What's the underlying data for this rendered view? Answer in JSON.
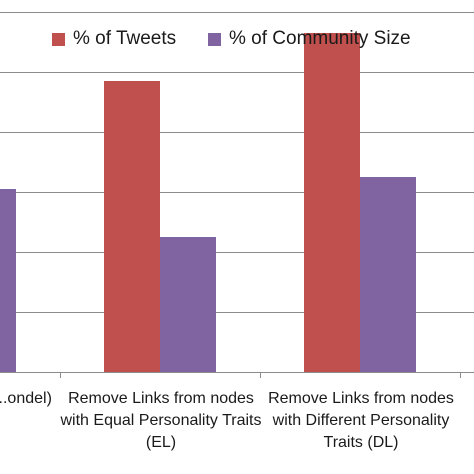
{
  "chart_data": {
    "type": "bar",
    "categories": [
      "...ondel)",
      "Remove Links from nodes with Equal Personality Traits (EL)",
      "Remove Links from nodes with Different Personality Traits (DL)"
    ],
    "series": [
      {
        "name": "% of Tweets",
        "color": "#c0504d",
        "values": [
          null,
          48.5,
          56.5
        ]
      },
      {
        "name": "% of Community Size",
        "color": "#8064a2",
        "values": [
          30.5,
          22.5,
          32.5
        ]
      }
    ],
    "ylim": [
      0,
      60
    ],
    "grid": true,
    "legend_position": "top",
    "title": "",
    "xlabel": "",
    "ylabel": ""
  }
}
